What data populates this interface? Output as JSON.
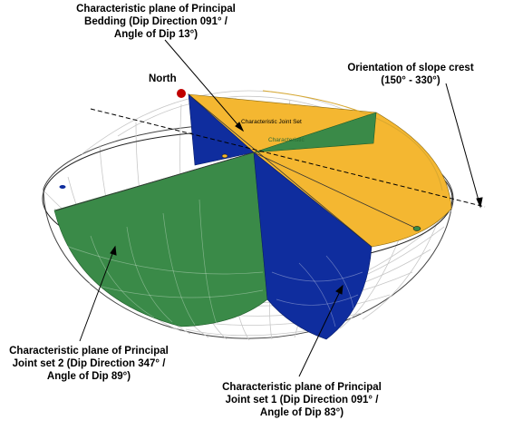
{
  "labels": {
    "bedding": [
      "Characteristic plane of Principal",
      "Bedding (Dip Direction 091° /",
      "Angle of Dip 13°)"
    ],
    "north": "North",
    "slope_crest": [
      "Orientation of slope crest",
      "(150° - 330°)"
    ],
    "joint2": [
      "Characteristic plane of Principal",
      "Joint set 2 (Dip Direction 347° /",
      "Angle of Dip 89°)"
    ],
    "joint1": [
      "Characteristic plane of Principal",
      "Joint set 1 (Dip Direction 091° /",
      "Angle of Dip 83°)"
    ]
  },
  "inner_labels": {
    "joint_set": "Characteristic Joint Set",
    "bedding_small": "Characteristic"
  },
  "colors": {
    "bedding": "#F4B731",
    "joint_set_1": "#0F2D9E",
    "joint_set_2": "#3A8A48",
    "north_marker": "#C00000",
    "grid": "#c8c8c8"
  }
}
